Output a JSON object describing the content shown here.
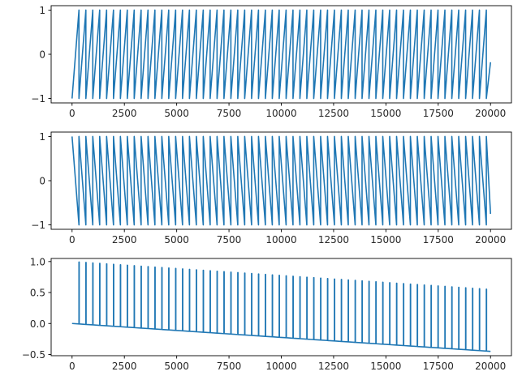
{
  "chart_data": [
    {
      "type": "line",
      "title": "",
      "xlabel": "",
      "ylabel": "",
      "xlim": [
        -1000,
        21000
      ],
      "ylim": [
        -1.1,
        1.1
      ],
      "grid": false,
      "x_ticks": [
        0,
        2500,
        5000,
        7500,
        10000,
        12500,
        15000,
        17500,
        20000
      ],
      "y_ticks": [
        -1,
        0,
        1
      ],
      "x_tick_labels": [
        "0",
        "2500",
        "5000",
        "7500",
        "10000",
        "12500",
        "15000",
        "17500",
        "20000"
      ],
      "y_tick_labels": [
        "−1",
        "0",
        "1"
      ],
      "series_color": "#1f77b4",
      "series": [
        {
          "waveform": "sawtooth-rising",
          "x_start": 0,
          "x_end": 20000,
          "period": 330,
          "cycles": 60,
          "y_min": -1,
          "y_max": 1,
          "y_at_end": -0.18
        }
      ]
    },
    {
      "type": "line",
      "title": "",
      "xlabel": "",
      "ylabel": "",
      "xlim": [
        -1000,
        21000
      ],
      "ylim": [
        -1.1,
        1.1
      ],
      "grid": false,
      "x_ticks": [
        0,
        2500,
        5000,
        7500,
        10000,
        12500,
        15000,
        17500,
        20000
      ],
      "y_ticks": [
        -1,
        0,
        1
      ],
      "x_tick_labels": [
        "0",
        "2500",
        "5000",
        "7500",
        "10000",
        "12500",
        "15000",
        "17500",
        "20000"
      ],
      "y_tick_labels": [
        "−1",
        "0",
        "1"
      ],
      "series_color": "#1f77b4",
      "series": [
        {
          "waveform": "sawtooth-falling",
          "x_start": 0,
          "x_end": 20000,
          "period": 330,
          "cycles": 60,
          "y_min": -1,
          "y_max": 1,
          "y_at_end": -0.75
        }
      ]
    },
    {
      "type": "line",
      "title": "",
      "xlabel": "",
      "ylabel": "",
      "xlim": [
        -1000,
        21000
      ],
      "ylim": [
        -0.52,
        1.05
      ],
      "grid": false,
      "x_ticks": [
        0,
        2500,
        5000,
        7500,
        10000,
        12500,
        15000,
        17500,
        20000
      ],
      "y_ticks": [
        -0.5,
        0.0,
        0.5,
        1.0
      ],
      "x_tick_labels": [
        "0",
        "2500",
        "5000",
        "7500",
        "10000",
        "12500",
        "15000",
        "17500",
        "20000"
      ],
      "y_tick_labels": [
        "−0.5",
        "0.0",
        "0.5",
        "1.0"
      ],
      "series_color": "#1f77b4",
      "series": [
        {
          "waveform": "pulse-train",
          "x_start": 0,
          "x_end": 20000,
          "first_pulse_x": 330,
          "period": 330,
          "pulse_width": 10,
          "baseline_start": 0.0,
          "baseline_end": -0.45,
          "peak_start": 1.0,
          "peak_end": 0.55
        }
      ]
    }
  ]
}
